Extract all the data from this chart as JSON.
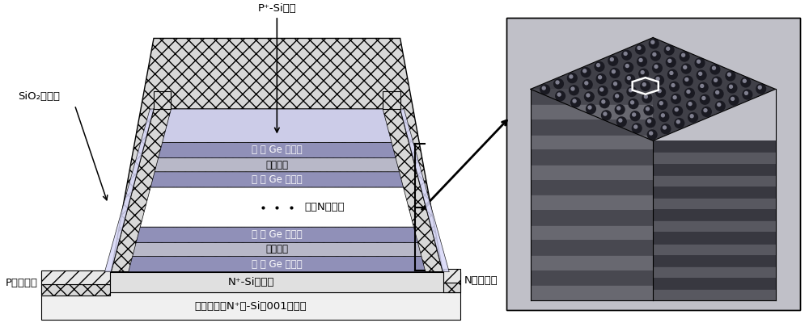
{
  "bg_color": "#ffffff",
  "label_p_cap": "P⁺-Si帽层",
  "label_sio2": "SiO₂钒化层",
  "label_p_electrode": "P金属电极",
  "label_n_electrode": "N金属电极",
  "label_n_buffer": "N⁺-Si缓冲层",
  "label_substrate": "半绣缘（或N⁺）-Si（001）衬底",
  "label_ge_dot": "有 序 Ge 量子点",
  "label_si_spacer": "硅间隔层",
  "label_repeat": "重复N个周期",
  "color_p_cap": "#cccce8",
  "color_ge_dot": "#9090b8",
  "color_si_spacer": "#b8b8c8",
  "color_n_buffer": "#e0e0e0",
  "color_substrate": "#f0f0f0",
  "color_wall": "#d8d8d8",
  "wall_hatch": "xx",
  "sem_top_bg": "#505060",
  "sem_dot_dark": "#202028",
  "sem_side_dark": "#484850",
  "sem_side_light": "#686870",
  "sem_border": "#333333"
}
